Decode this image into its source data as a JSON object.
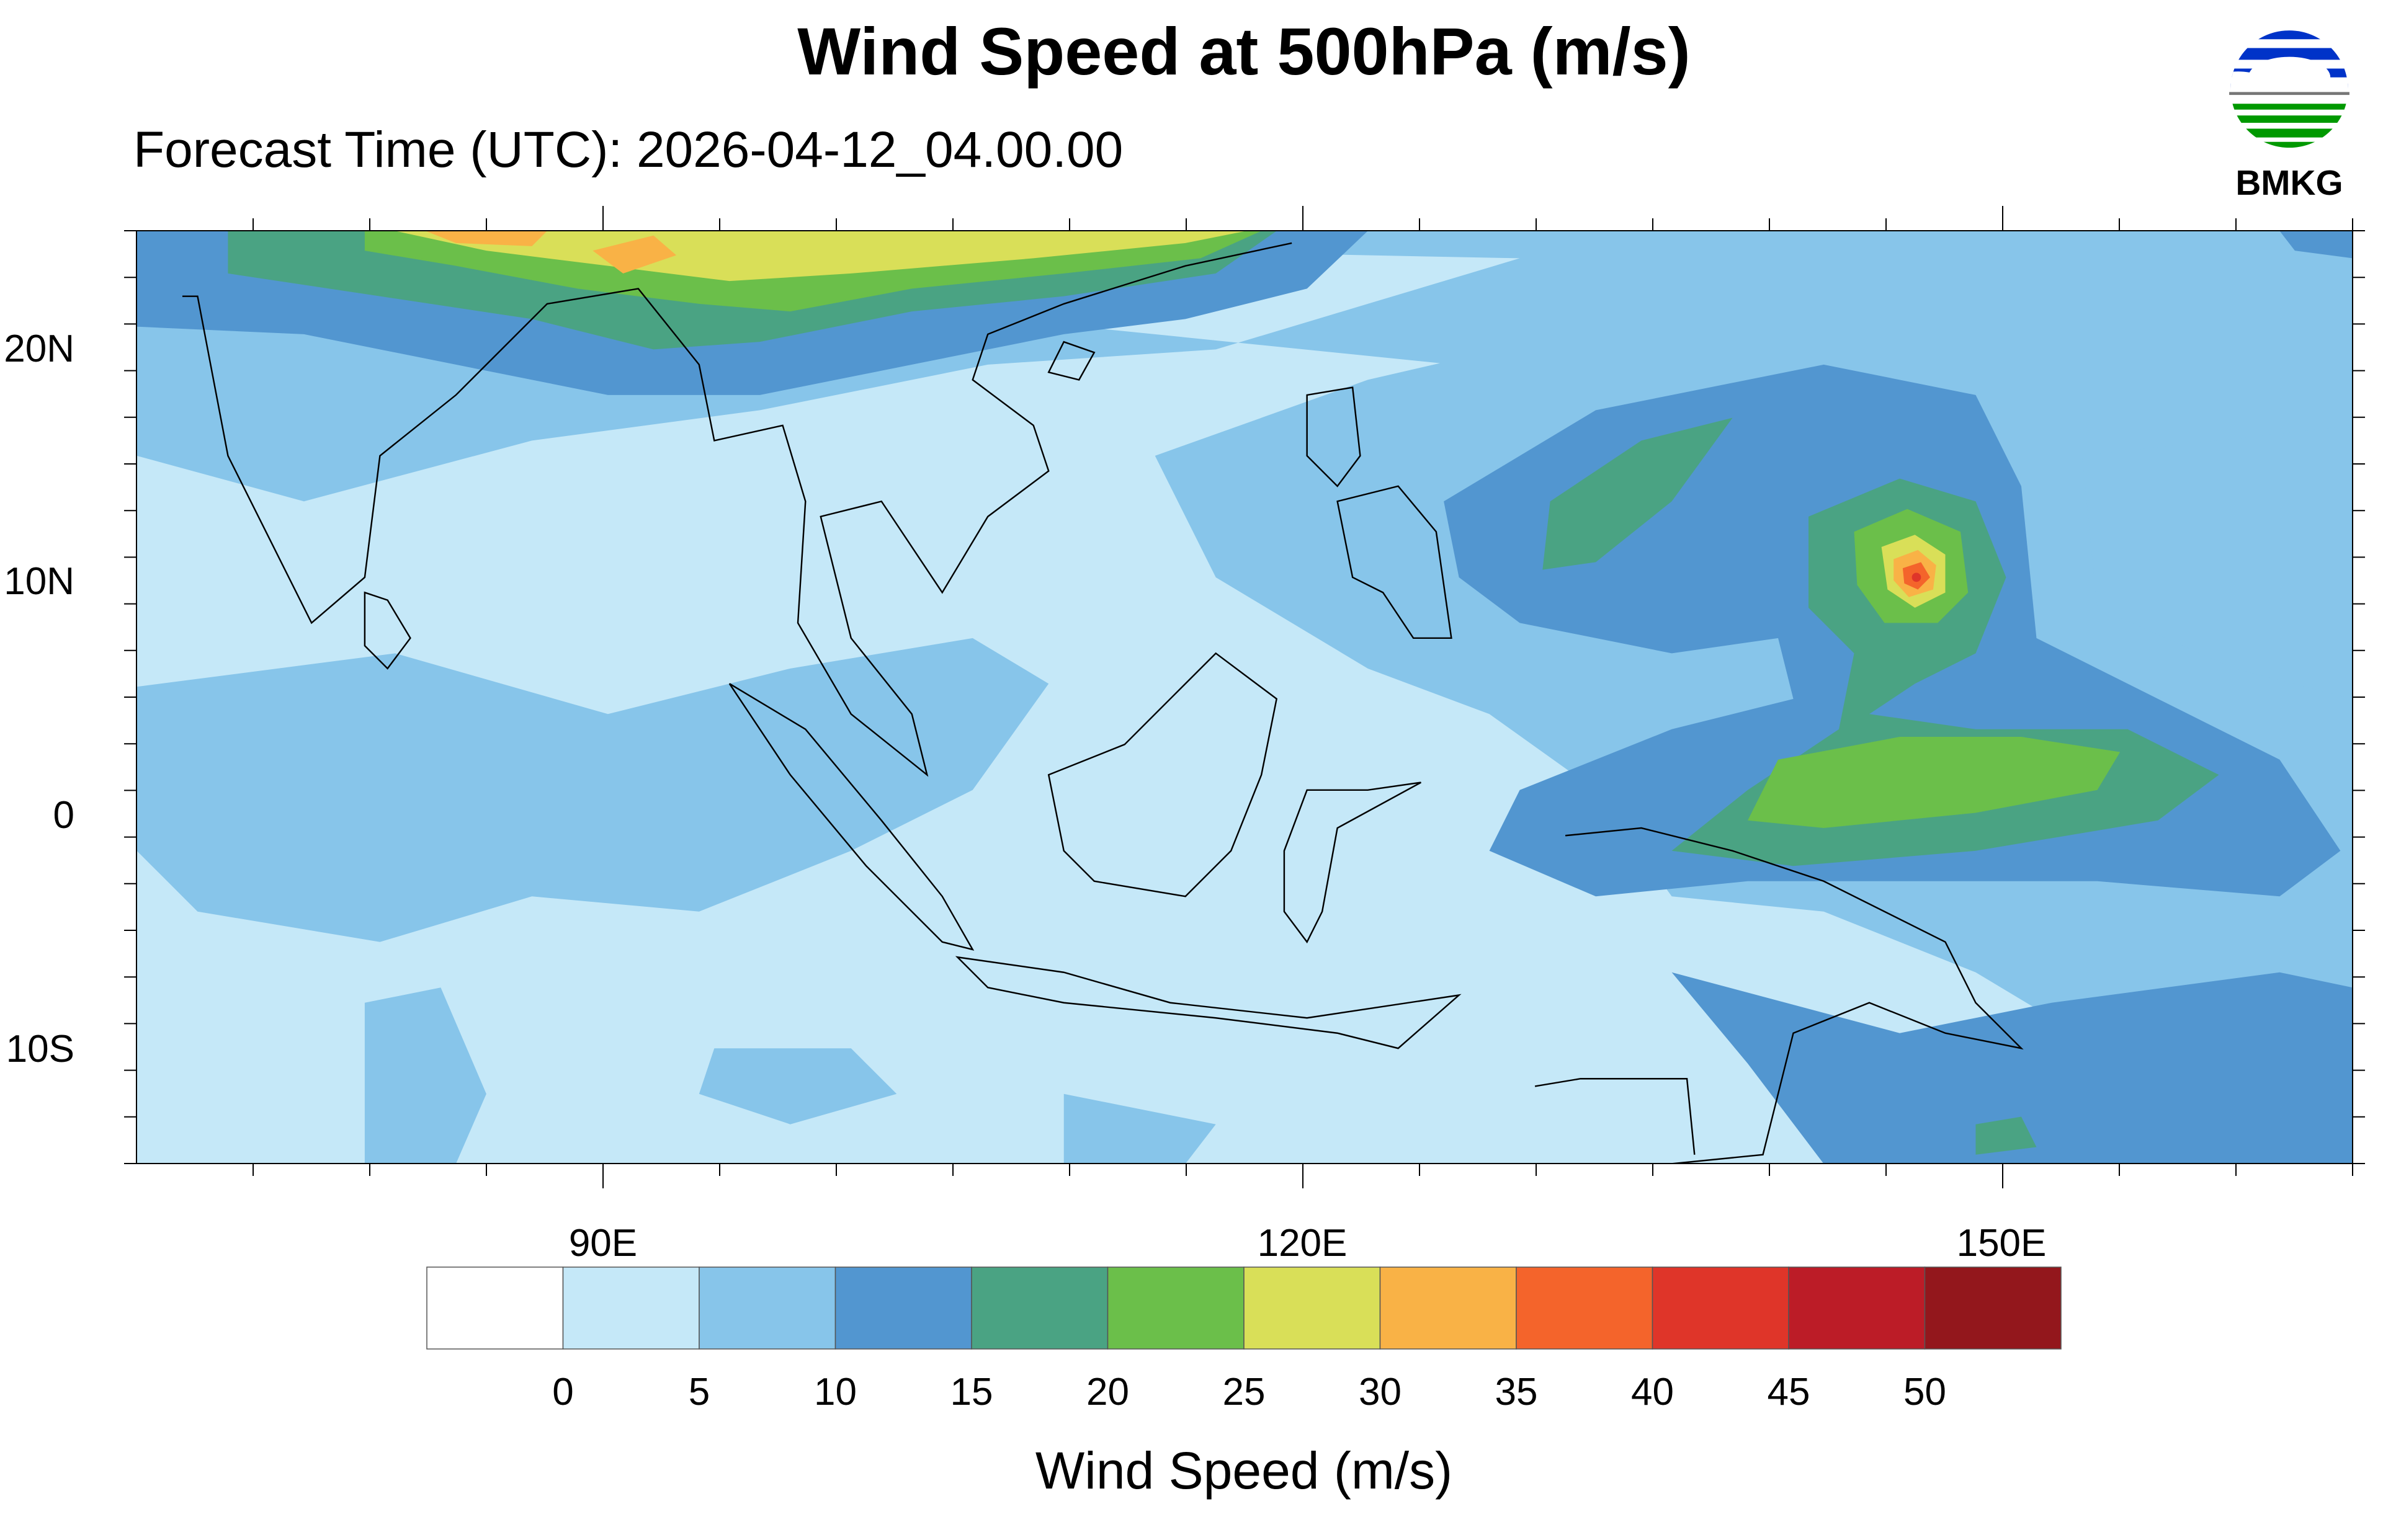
{
  "title": "Wind Speed at 500hPa (m/s)",
  "subtitle": "Forecast Time (UTC): 2026-04-12_04.00.00",
  "logo": {
    "text": "BMKG",
    "colors": {
      "blue": "#0033c8",
      "green": "#009900",
      "gray": "#777777"
    }
  },
  "chart_data": {
    "type": "heatmap",
    "title": "Wind Speed at 500hPa (m/s)",
    "domain": {
      "lon_range": [
        70,
        165
      ],
      "lat_range": [
        -15,
        25
      ]
    },
    "x_ticks": [
      {
        "value": 90,
        "label": "90E"
      },
      {
        "value": 120,
        "label": "120E"
      },
      {
        "value": 150,
        "label": "150E"
      }
    ],
    "y_ticks": [
      {
        "value": 20,
        "label": "20N"
      },
      {
        "value": 10,
        "label": "10N"
      },
      {
        "value": 0,
        "label": "0"
      },
      {
        "value": -10,
        "label": "10S"
      }
    ],
    "colorbar": {
      "label": "Wind Speed (m/s)",
      "levels": [
        0,
        5,
        10,
        15,
        20,
        25,
        30,
        35,
        40,
        45,
        50
      ],
      "level_labels": [
        "0",
        "5",
        "10",
        "15",
        "20",
        "25",
        "30",
        "35",
        "40",
        "45",
        "50"
      ],
      "colors": [
        "#ffffff",
        "#c5e8f8",
        "#87c5ea",
        "#5296d0",
        "#4aa383",
        "#6bbf4a",
        "#d9df58",
        "#f9b246",
        "#f4642b",
        "#df3529",
        "#bc1c27",
        "#93171c"
      ]
    }
  }
}
